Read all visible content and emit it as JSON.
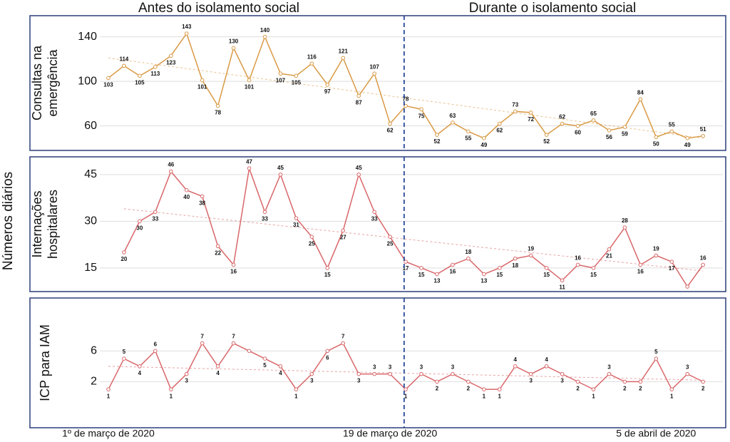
{
  "header": {
    "left": "Antes do isolamento social",
    "right": "Durante o isolamento social"
  },
  "y_title": "Números diários",
  "chart_data": [
    {
      "type": "line",
      "y_label": [
        "Consultas na",
        "emergência"
      ],
      "x": [
        0,
        1,
        2,
        3,
        4,
        5,
        6,
        7,
        8,
        9,
        10,
        11,
        12,
        13,
        14,
        15,
        16,
        17,
        18,
        19,
        20,
        21,
        22,
        23,
        24,
        25,
        26,
        27,
        28,
        29,
        30,
        31,
        32,
        33,
        34,
        35,
        36,
        37,
        38
      ],
      "series": [
        {
          "color": "#d99a45",
          "values": [
            103,
            114,
            105,
            113,
            123,
            143,
            101,
            78,
            130,
            101,
            140,
            107,
            105,
            116,
            97,
            121,
            87,
            107,
            62,
            78,
            75,
            52,
            63,
            55,
            49,
            62,
            73,
            72,
            52,
            62,
            60,
            65,
            56,
            59,
            84,
            50,
            55,
            49,
            51
          ]
        }
      ],
      "xlim": [
        -5.01,
        39.45
      ],
      "ylim": [
        38,
        159
      ],
      "yticks": [
        60,
        100,
        140
      ],
      "grid": true,
      "trend": [
        121,
        49
      ],
      "divider": 18.9
    },
    {
      "type": "line",
      "y_label": [
        "Internações",
        "hospitalares"
      ],
      "x": [
        1,
        2,
        3,
        4,
        5,
        6,
        7,
        8,
        9,
        10,
        11,
        12,
        13,
        14,
        15,
        16,
        17,
        18,
        19,
        20,
        21,
        22,
        23,
        24,
        25,
        26,
        27,
        28,
        29,
        30,
        31,
        32,
        33,
        34,
        35,
        36,
        37,
        38
      ],
      "series": [
        {
          "color": "#d9676a",
          "values": [
            20,
            30,
            33,
            46,
            40,
            38,
            22,
            16,
            47,
            33,
            45,
            31,
            25,
            15,
            27,
            45,
            33,
            25,
            17,
            15,
            13,
            16,
            18,
            13,
            15,
            18,
            19,
            15,
            11,
            16,
            15,
            21,
            28,
            16,
            19,
            17,
            9,
            16
          ],
          "value_labels": [
            "20",
            "30",
            "33",
            "46",
            "40",
            "38",
            "22",
            "16",
            "47",
            "33",
            "45",
            "31",
            "25",
            "15",
            "27",
            "45",
            "33",
            "25",
            "17",
            "15",
            "13",
            "16",
            "18",
            "13",
            "15",
            "18",
            "19",
            "15",
            "11",
            "16",
            "15",
            "21",
            "28",
            "16",
            "19",
            "17",
            null,
            "16"
          ]
        }
      ],
      "xlim": [
        -5.01,
        39.45
      ],
      "ylim": [
        7.4,
        50.7
      ],
      "yticks": [
        15,
        30,
        45
      ],
      "grid": true,
      "trend": [
        34,
        14
      ],
      "divider": 18.9
    },
    {
      "type": "line",
      "y_label": [
        "ICP para IAM"
      ],
      "x": [
        0,
        1,
        2,
        3,
        4,
        5,
        6,
        7,
        8,
        9,
        10,
        11,
        12,
        13,
        14,
        15,
        16,
        17,
        18,
        19,
        20,
        21,
        22,
        23,
        24,
        25,
        26,
        27,
        28,
        29,
        30,
        31,
        32,
        33,
        34,
        35,
        36,
        37,
        38
      ],
      "series": [
        {
          "color": "#d9676a",
          "values": [
            1,
            5,
            4,
            6,
            1,
            3,
            7,
            4,
            7,
            6,
            5,
            4,
            1,
            3,
            6,
            7,
            3,
            3,
            3,
            1,
            3,
            2,
            3,
            2,
            1,
            1,
            4,
            3,
            4,
            3,
            2,
            1,
            3,
            2,
            2,
            5,
            1,
            3,
            2
          ],
          "value_labels": [
            "1",
            "5",
            "4",
            "6",
            "1",
            "3",
            "7",
            "4",
            "7",
            null,
            "5",
            "4",
            "1",
            "3",
            "6",
            "7",
            "3",
            "3",
            "3",
            "1",
            "3",
            "2",
            "3",
            "2",
            "1",
            "1",
            "4",
            "3",
            "4",
            "3",
            "2",
            "1",
            "3",
            "2",
            "2",
            "5",
            "1",
            "3",
            "2"
          ]
        }
      ],
      "xlim": [
        -5.01,
        39.45
      ],
      "ylim": [
        -4,
        12.9
      ],
      "yticks": [
        2,
        6
      ],
      "grid": true,
      "trend": [
        4,
        2.2
      ],
      "divider": 18.9,
      "xticks": [
        {
          "value": 0,
          "label": "1º de março de 2020"
        },
        {
          "value": 18,
          "label": "19 de março de 2020"
        },
        {
          "value": 35,
          "label": "5 de abril de 2020"
        }
      ]
    }
  ]
}
